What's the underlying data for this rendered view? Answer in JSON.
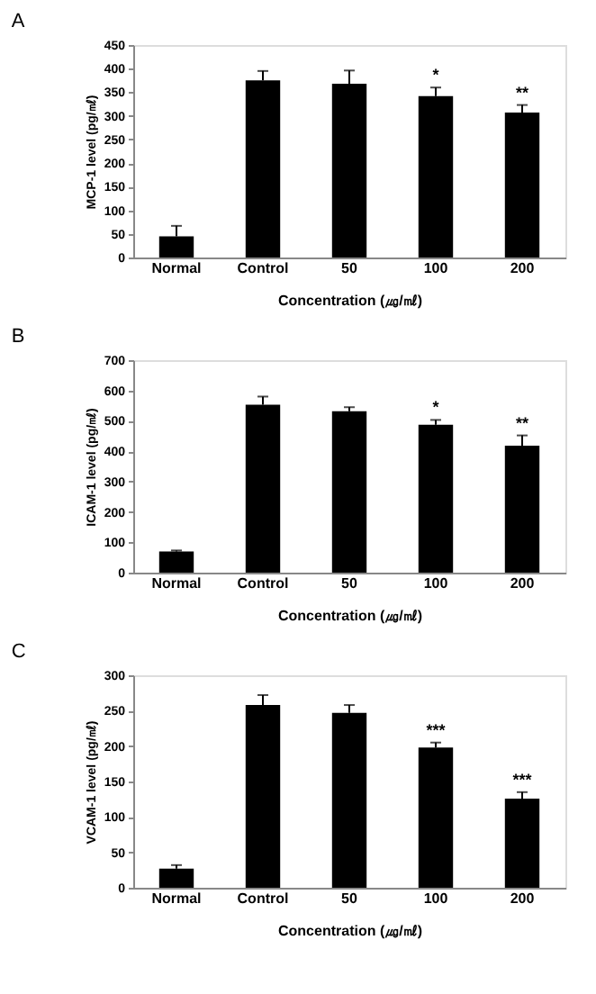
{
  "chart_data": [
    {
      "type": "bar",
      "title": "A",
      "xlabel": "Concentration (㎍/㎖)",
      "ylabel": "MCP-1 level (pg/㎖)",
      "categories": [
        "Normal",
        "Control",
        "50",
        "100",
        "200"
      ],
      "values": [
        45,
        375,
        368,
        342,
        307
      ],
      "color": "#000000",
      "errors": [
        [
          45,
          67
        ],
        [
          375,
          395
        ],
        [
          368,
          396
        ],
        [
          342,
          360
        ],
        [
          307,
          323
        ]
      ],
      "ylim": [
        0,
        450
      ],
      "yticks": [
        0,
        50,
        100,
        150,
        200,
        250,
        300,
        350,
        400,
        450
      ],
      "grid": false,
      "annotations": [
        {
          "text": "*",
          "x": "100",
          "y": 360
        },
        {
          "text": "**",
          "x": "200",
          "y": 323
        }
      ]
    },
    {
      "type": "bar",
      "title": "B",
      "xlabel": "Concentration (㎍/㎖)",
      "ylabel": "ICAM-1 level (pg/㎖)",
      "categories": [
        "Normal",
        "Control",
        "50",
        "100",
        "200"
      ],
      "values": [
        70,
        553,
        532,
        487,
        418
      ],
      "color": "#000000",
      "errors": [
        [
          70,
          73
        ],
        [
          553,
          580
        ],
        [
          532,
          545
        ],
        [
          487,
          503
        ],
        [
          418,
          452
        ]
      ],
      "ylim": [
        0,
        700
      ],
      "yticks": [
        0,
        100,
        200,
        300,
        400,
        500,
        600,
        700
      ],
      "grid": false,
      "annotations": [
        {
          "text": "*",
          "x": "100",
          "y": 503
        },
        {
          "text": "**",
          "x": "200",
          "y": 452
        }
      ]
    },
    {
      "type": "bar",
      "title": "C",
      "xlabel": "Concentration (㎍/㎖)",
      "ylabel": "VCAM-1 level (pg/㎖)",
      "categories": [
        "Normal",
        "Control",
        "50",
        "100",
        "200"
      ],
      "values": [
        27,
        258,
        247,
        198,
        126
      ],
      "color": "#000000",
      "errors": [
        [
          27,
          32
        ],
        [
          258,
          272
        ],
        [
          247,
          258
        ],
        [
          198,
          205
        ],
        [
          126,
          135
        ]
      ],
      "ylim": [
        0,
        300
      ],
      "yticks": [
        0,
        50,
        100,
        150,
        200,
        250,
        300
      ],
      "grid": false,
      "annotations": [
        {
          "text": "***",
          "x": "100",
          "y": 205
        },
        {
          "text": "***",
          "x": "200",
          "y": 135
        }
      ]
    }
  ]
}
